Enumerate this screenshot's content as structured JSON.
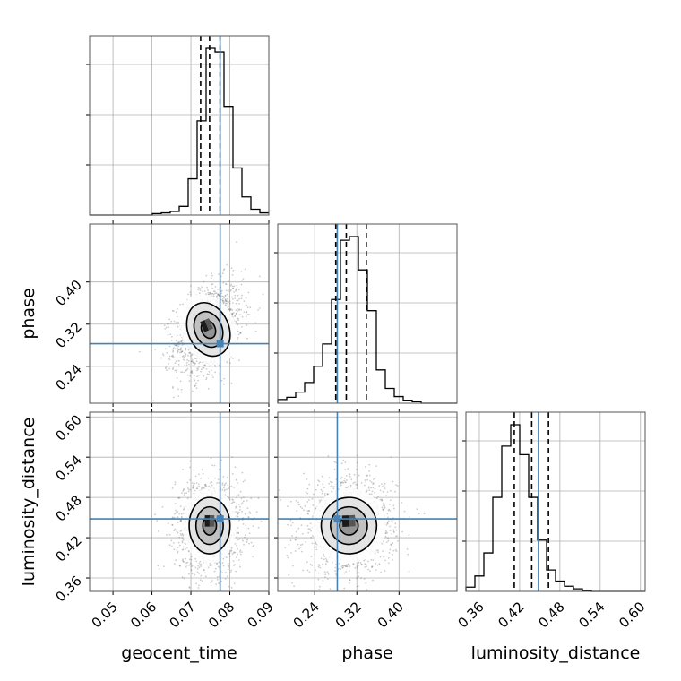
{
  "chart_data": {
    "type": "corner",
    "params": [
      "geocent_time",
      "phase",
      "luminosity_distance"
    ],
    "labels": {
      "geocent_time": "geocent_time",
      "phase": "phase",
      "luminosity_distance": "luminosity_distance"
    },
    "ranges": {
      "geocent_time": [
        0.044,
        0.09
      ],
      "phase": [
        0.17,
        0.51
      ],
      "luminosity_distance": [
        0.34,
        0.607
      ]
    },
    "ticks": {
      "geocent_time": [
        "0.05",
        "0.06",
        "0.07",
        "0.08",
        "0.09"
      ],
      "phase": [
        "0.24",
        "0.32",
        "0.40"
      ],
      "luminosity_distance": [
        "0.36",
        "0.42",
        "0.48",
        "0.54",
        "0.60"
      ]
    },
    "truths": {
      "geocent_time": 0.0775,
      "phase": 0.283,
      "luminosity_distance": 0.448
    },
    "truth_color": "#4682b4",
    "quantiles": {
      "geocent_time": [
        0.0725,
        0.0748,
        0.0775
      ],
      "phase": [
        0.28,
        0.3,
        0.338
      ],
      "luminosity_distance": [
        0.412,
        0.438,
        0.463
      ]
    },
    "histograms": {
      "geocent_time": {
        "edges_start": 0.044,
        "bin_width": 0.0023,
        "counts": [
          0,
          0,
          0,
          0,
          0,
          0,
          0,
          2,
          3,
          5,
          12,
          50,
          130,
          230,
          225,
          150,
          65,
          25,
          8,
          3
        ]
      },
      "phase": {
        "edges_start": 0.17,
        "bin_width": 0.017,
        "counts": [
          5,
          8,
          15,
          28,
          50,
          80,
          140,
          220,
          225,
          180,
          125,
          45,
          20,
          9,
          4,
          2,
          0,
          0,
          0,
          0
        ]
      },
      "luminosity_distance": {
        "edges_start": 0.34,
        "bin_width": 0.01335,
        "counts": [
          5,
          18,
          45,
          110,
          170,
          195,
          160,
          110,
          60,
          25,
          12,
          6,
          3,
          1,
          0,
          0,
          0,
          0,
          0,
          0
        ]
      }
    },
    "joint": [
      {
        "x": "geocent_time",
        "y": "phase",
        "mean": [
          0.0745,
          0.31
        ],
        "sd": [
          0.0035,
          0.035
        ],
        "corr": 0.35
      },
      {
        "x": "geocent_time",
        "y": "luminosity_distance",
        "mean": [
          0.0748,
          0.438
        ],
        "sd": [
          0.0035,
          0.028
        ],
        "corr": 0.0
      },
      {
        "x": "phase",
        "y": "luminosity_distance",
        "mean": [
          0.305,
          0.438
        ],
        "sd": [
          0.035,
          0.028
        ],
        "corr": 0.05
      }
    ],
    "contour_levels": [
      0.5,
      1.0,
      1.5,
      2.0
    ]
  }
}
